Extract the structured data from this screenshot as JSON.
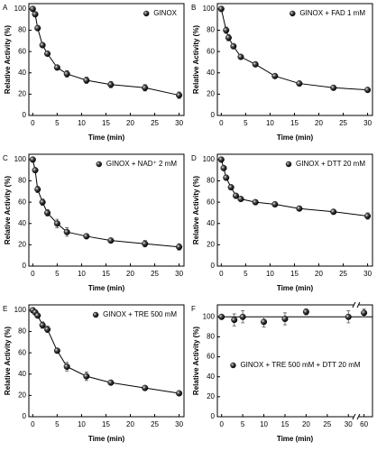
{
  "chart_data": [
    {
      "type": "scatter",
      "panel_label": "A",
      "xlabel": "Time (min)",
      "ylabel": "Relative Activity (%)",
      "x": [
        0,
        0.5,
        1,
        2,
        3,
        5,
        7,
        11,
        16,
        23,
        30
      ],
      "series": [
        {
          "name": "GINOX",
          "color": "#000000",
          "values": [
            100,
            95,
            82,
            66,
            58,
            45,
            39,
            33,
            29,
            26,
            19
          ],
          "errors": [
            1,
            2,
            2,
            2,
            2,
            2,
            3,
            3,
            3,
            3,
            3
          ]
        }
      ],
      "xlim": [
        -0.8,
        31
      ],
      "ylim": [
        0,
        105
      ],
      "xticks": [
        0,
        5,
        10,
        15,
        20,
        25,
        30
      ],
      "yticks": [
        0,
        20,
        40,
        60,
        80,
        100
      ],
      "legend": "upper right",
      "line": true
    },
    {
      "type": "scatter",
      "panel_label": "B",
      "xlabel": "Time (min)",
      "ylabel": "Relative Activity (%)",
      "x": [
        0,
        1,
        1.5,
        2.5,
        4,
        7,
        11,
        16,
        23,
        30
      ],
      "series": [
        {
          "name": "GINOX + FAD 1 mM",
          "color": "#000000",
          "values": [
            100,
            80,
            73,
            65,
            55,
            48,
            37,
            30,
            26,
            24
          ],
          "errors": [
            1,
            3,
            3,
            2,
            2,
            2,
            2,
            2,
            1,
            1
          ]
        }
      ],
      "xlim": [
        -0.8,
        31
      ],
      "ylim": [
        0,
        105
      ],
      "xticks": [
        0,
        5,
        10,
        15,
        20,
        25,
        30
      ],
      "yticks": [
        0,
        20,
        40,
        60,
        80,
        100
      ],
      "legend": "upper right",
      "line": true
    },
    {
      "type": "scatter",
      "panel_label": "C",
      "xlabel": "Time (min)",
      "ylabel": "Relative Activity (%)",
      "x": [
        0,
        0.5,
        1,
        2,
        3,
        5,
        7,
        11,
        16,
        23,
        30
      ],
      "series": [
        {
          "name": "GINOX + NAD⁺ 2 mM",
          "color": "#000000",
          "values": [
            100,
            90,
            72,
            60,
            50,
            40,
            32,
            28,
            24,
            21,
            18
          ],
          "errors": [
            1,
            2,
            3,
            3,
            3,
            4,
            4,
            2,
            2,
            3,
            3
          ]
        }
      ],
      "xlim": [
        -0.8,
        31
      ],
      "ylim": [
        0,
        105
      ],
      "xticks": [
        0,
        5,
        10,
        15,
        20,
        25,
        30
      ],
      "yticks": [
        0,
        20,
        40,
        60,
        80,
        100
      ],
      "legend": "upper right",
      "line": true
    },
    {
      "type": "scatter",
      "panel_label": "D",
      "xlabel": "Time (min)",
      "ylabel": "Relative Activity (%)",
      "x": [
        0,
        0.5,
        1,
        2,
        3,
        4,
        7,
        11,
        16,
        23,
        30
      ],
      "series": [
        {
          "name": "GINOX + DTT 20 mM",
          "color": "#000000",
          "values": [
            100,
            92,
            83,
            74,
            66,
            63,
            60,
            58,
            54,
            51,
            47
          ],
          "errors": [
            1,
            2,
            2,
            2,
            2,
            2,
            2,
            2,
            2,
            2,
            3
          ]
        }
      ],
      "xlim": [
        -0.8,
        31
      ],
      "ylim": [
        0,
        105
      ],
      "xticks": [
        0,
        5,
        10,
        15,
        20,
        25,
        30
      ],
      "yticks": [
        0,
        20,
        40,
        60,
        80,
        100
      ],
      "legend": "upper right",
      "line": true
    },
    {
      "type": "scatter",
      "panel_label": "E",
      "xlabel": "Time (min)",
      "ylabel": "Relative Activity (%)",
      "x": [
        0,
        0.5,
        1,
        2,
        3,
        5,
        7,
        11,
        16,
        23,
        30
      ],
      "series": [
        {
          "name": "GINOX + TRE 500 mM",
          "color": "#000000",
          "values": [
            100,
            98,
            95,
            86,
            82,
            62,
            47,
            38,
            32,
            27,
            22
          ],
          "errors": [
            1,
            2,
            2,
            3,
            3,
            2,
            4,
            4,
            2,
            1,
            1
          ]
        }
      ],
      "xlim": [
        -0.8,
        31
      ],
      "ylim": [
        0,
        105
      ],
      "xticks": [
        0,
        5,
        10,
        15,
        20,
        25,
        30
      ],
      "yticks": [
        0,
        20,
        40,
        60,
        80,
        100
      ],
      "legend": "upper right",
      "line": true
    },
    {
      "type": "scatter",
      "panel_label": "F",
      "xlabel": "Time (min)",
      "ylabel": "Relative Activity (%)",
      "x": [
        0,
        3,
        5,
        10,
        15,
        20,
        30,
        60
      ],
      "series": [
        {
          "name": "GINOX + TRE 500 mM + DTT 20 mM",
          "color": "#000000",
          "values": [
            100,
            97,
            100,
            95,
            98,
            105,
            100,
            104
          ],
          "errors": [
            2,
            6,
            6,
            5,
            6,
            3,
            6,
            4
          ]
        }
      ],
      "xlim": [
        -1,
        62
      ],
      "x_break": [
        31,
        59
      ],
      "ylim": [
        0,
        112
      ],
      "xticks": [
        0,
        5,
        10,
        15,
        20,
        25,
        30,
        60
      ],
      "yticks": [
        0,
        20,
        40,
        60,
        80,
        100
      ],
      "legend": "center",
      "line": false,
      "hline": 100
    }
  ]
}
